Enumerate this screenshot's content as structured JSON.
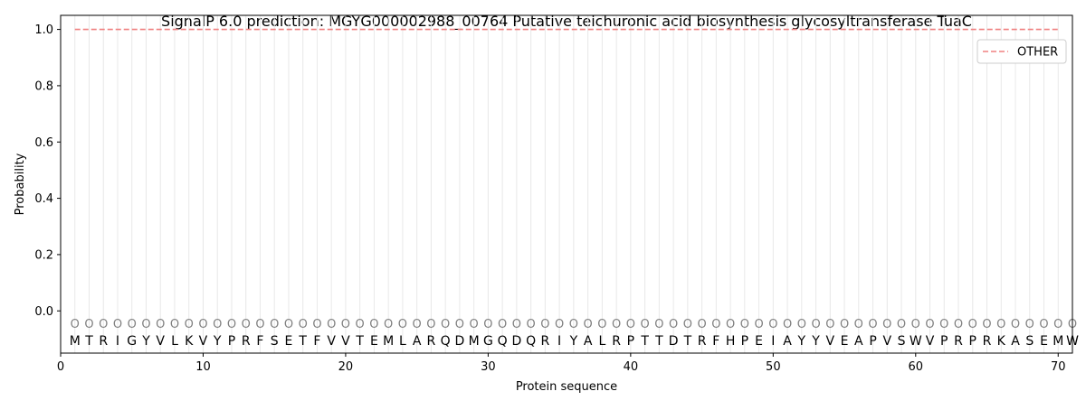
{
  "chart_data": {
    "type": "line",
    "title": "SignalP 6.0 prediction: MGYG000002988_00764 Putative teichuronic acid biosynthesis glycosyltransferase TuaC",
    "xlabel": "Protein sequence",
    "ylabel": "Probability",
    "xlim": [
      0,
      71
    ],
    "ylim": [
      -0.15,
      1.05
    ],
    "xticks": [
      0,
      10,
      20,
      30,
      40,
      50,
      60,
      70
    ],
    "yticks": [
      0.0,
      0.2,
      0.4,
      0.6,
      0.8,
      1.0
    ],
    "xtick_labels": [
      "0",
      "10",
      "20",
      "30",
      "40",
      "50",
      "60",
      "70"
    ],
    "ytick_labels": [
      "0.0",
      "0.2",
      "0.4",
      "0.6",
      "0.8",
      "1.0"
    ],
    "grid": "vertical lines at each residue",
    "legend_position": "top-right",
    "sequence": [
      "M",
      "T",
      "R",
      "I",
      "G",
      "Y",
      "V",
      "L",
      "K",
      "V",
      "Y",
      "P",
      "R",
      "F",
      "S",
      "E",
      "T",
      "F",
      "V",
      "V",
      "T",
      "E",
      "M",
      "L",
      "A",
      "R",
      "Q",
      "D",
      "M",
      "G",
      "Q",
      "D",
      "Q",
      "R",
      "I",
      "Y",
      "A",
      "L",
      "R",
      "P",
      "T",
      "T",
      "D",
      "T",
      "R",
      "F",
      "H",
      "P",
      "E",
      "I",
      "A",
      "Y",
      "Y",
      "V",
      "E",
      "A",
      "P",
      "V",
      "S",
      "W",
      "V",
      "P",
      "R",
      "P",
      "R",
      "K",
      "A",
      "S",
      "E",
      "M",
      "W"
    ],
    "region_label": "O",
    "region_label_y": -0.045,
    "series": [
      {
        "name": "OTHER",
        "color": "#f08080",
        "style": "dashed",
        "x": [
          1,
          70
        ],
        "values": [
          1.0,
          1.0
        ]
      }
    ]
  }
}
